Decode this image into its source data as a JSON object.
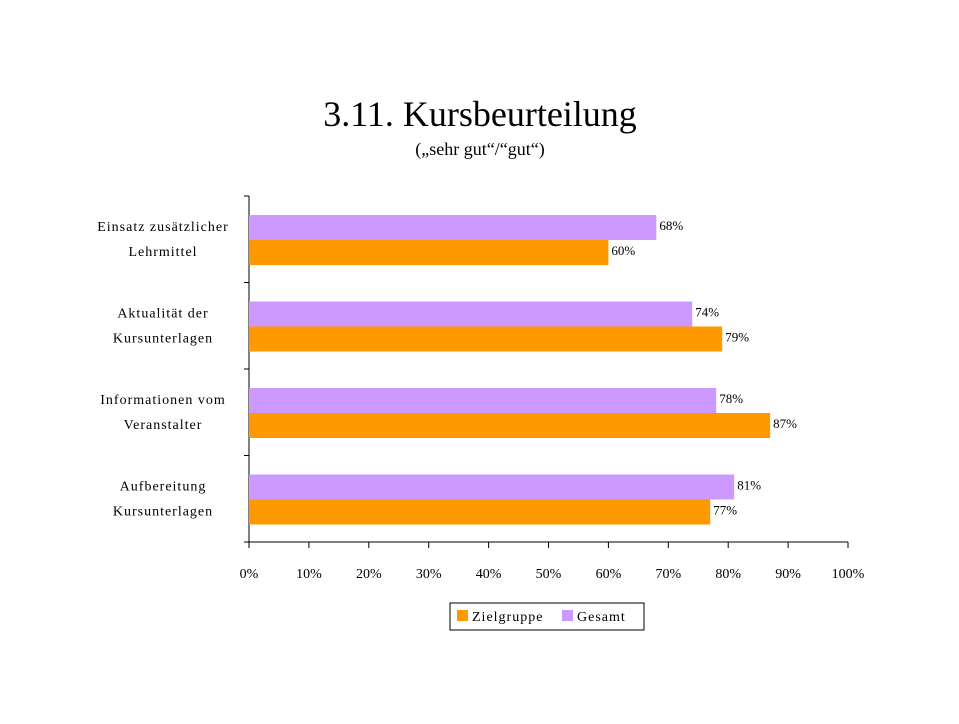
{
  "chart_data": {
    "type": "bar",
    "orientation": "horizontal",
    "title": "3.11. Kursbeurteilung",
    "subtitle": "(„sehr gut“/“gut“)",
    "categories": [
      [
        "Einsatz zusätzlicher",
        "Lehrmittel"
      ],
      [
        "Aktualität der",
        "Kursunterlagen"
      ],
      [
        "Informationen vom",
        "Veranstalter"
      ],
      [
        "Aufbereitung",
        "Kursunterlagen"
      ]
    ],
    "series": [
      {
        "name": "Gesamt",
        "color": "#CC99FF",
        "values": [
          68,
          74,
          78,
          81
        ],
        "labels": [
          "68%",
          "74%",
          "78%",
          "81%"
        ]
      },
      {
        "name": "Zielgruppe",
        "color": "#FF9900",
        "values": [
          60,
          79,
          87,
          77
        ],
        "labels": [
          "60%",
          "79%",
          "87%",
          "77%"
        ]
      }
    ],
    "xlim": [
      0,
      100
    ],
    "xticks": [
      "0%",
      "10%",
      "20%",
      "30%",
      "40%",
      "50%",
      "60%",
      "70%",
      "80%",
      "90%",
      "100%"
    ],
    "xlabel": "",
    "ylabel": "",
    "grid": false,
    "legend": {
      "position": "bottom",
      "entries": [
        "Zielgruppe",
        "Gesamt"
      ]
    }
  }
}
